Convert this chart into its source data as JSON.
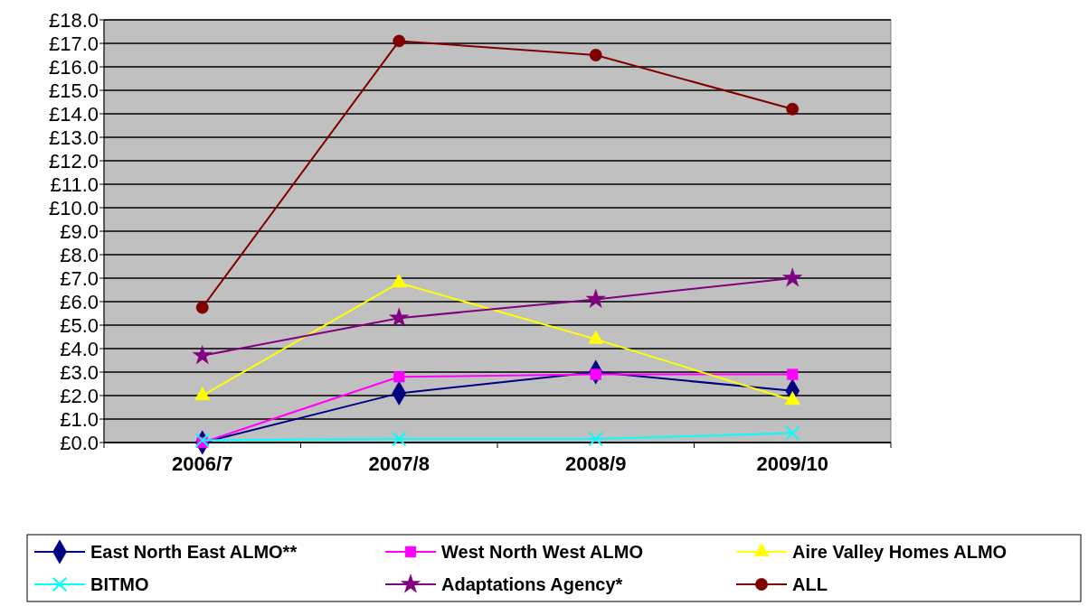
{
  "chart_data": {
    "type": "line",
    "categories": [
      "2006/7",
      "2007/8",
      "2008/9",
      "2009/10"
    ],
    "series": [
      {
        "name": "East North East ALMO**",
        "color": "#000080",
        "marker": "diamond",
        "values": [
          0.0,
          2.1,
          3.0,
          2.2
        ]
      },
      {
        "name": "West North West ALMO",
        "color": "#ff00ff",
        "marker": "square",
        "values": [
          0.0,
          2.8,
          2.9,
          2.9
        ]
      },
      {
        "name": "Aire Valley Homes ALMO",
        "color": "#ffff00",
        "marker": "triangle",
        "values": [
          2.0,
          6.8,
          4.4,
          1.8
        ]
      },
      {
        "name": "BITMO",
        "color": "#00ffff",
        "marker": "cross",
        "values": [
          0.1,
          0.15,
          0.15,
          0.4
        ]
      },
      {
        "name": "Adaptations Agency*",
        "color": "#800080",
        "marker": "star",
        "values": [
          3.7,
          5.3,
          6.1,
          7.0
        ]
      },
      {
        "name": "ALL",
        "color": "#800000",
        "marker": "circle",
        "values": [
          5.75,
          17.1,
          16.5,
          14.2
        ]
      }
    ],
    "ylim": [
      0,
      18
    ],
    "yticks": [
      {
        "value": 0,
        "label": "£0.0"
      },
      {
        "value": 1,
        "label": "£1.0"
      },
      {
        "value": 2,
        "label": "£2.0"
      },
      {
        "value": 3,
        "label": "£3.0"
      },
      {
        "value": 4,
        "label": "£4.0"
      },
      {
        "value": 5,
        "label": "£5.0"
      },
      {
        "value": 6,
        "label": "£6.0"
      },
      {
        "value": 7,
        "label": "£7.0"
      },
      {
        "value": 8,
        "label": "£8.0"
      },
      {
        "value": 9,
        "label": "£9.0"
      },
      {
        "value": 10,
        "label": "£10.0"
      },
      {
        "value": 11,
        "label": "£11.0"
      },
      {
        "value": 12,
        "label": "£12.0"
      },
      {
        "value": 13,
        "label": "£13.0"
      },
      {
        "value": 14,
        "label": "£14.0"
      },
      {
        "value": 15,
        "label": "£15.0"
      },
      {
        "value": 16,
        "label": "£16.0"
      },
      {
        "value": 17,
        "label": "£17.0"
      },
      {
        "value": 18,
        "label": "£18.0"
      }
    ],
    "grid": "y",
    "legend": "bottom",
    "line_style": "solid"
  }
}
